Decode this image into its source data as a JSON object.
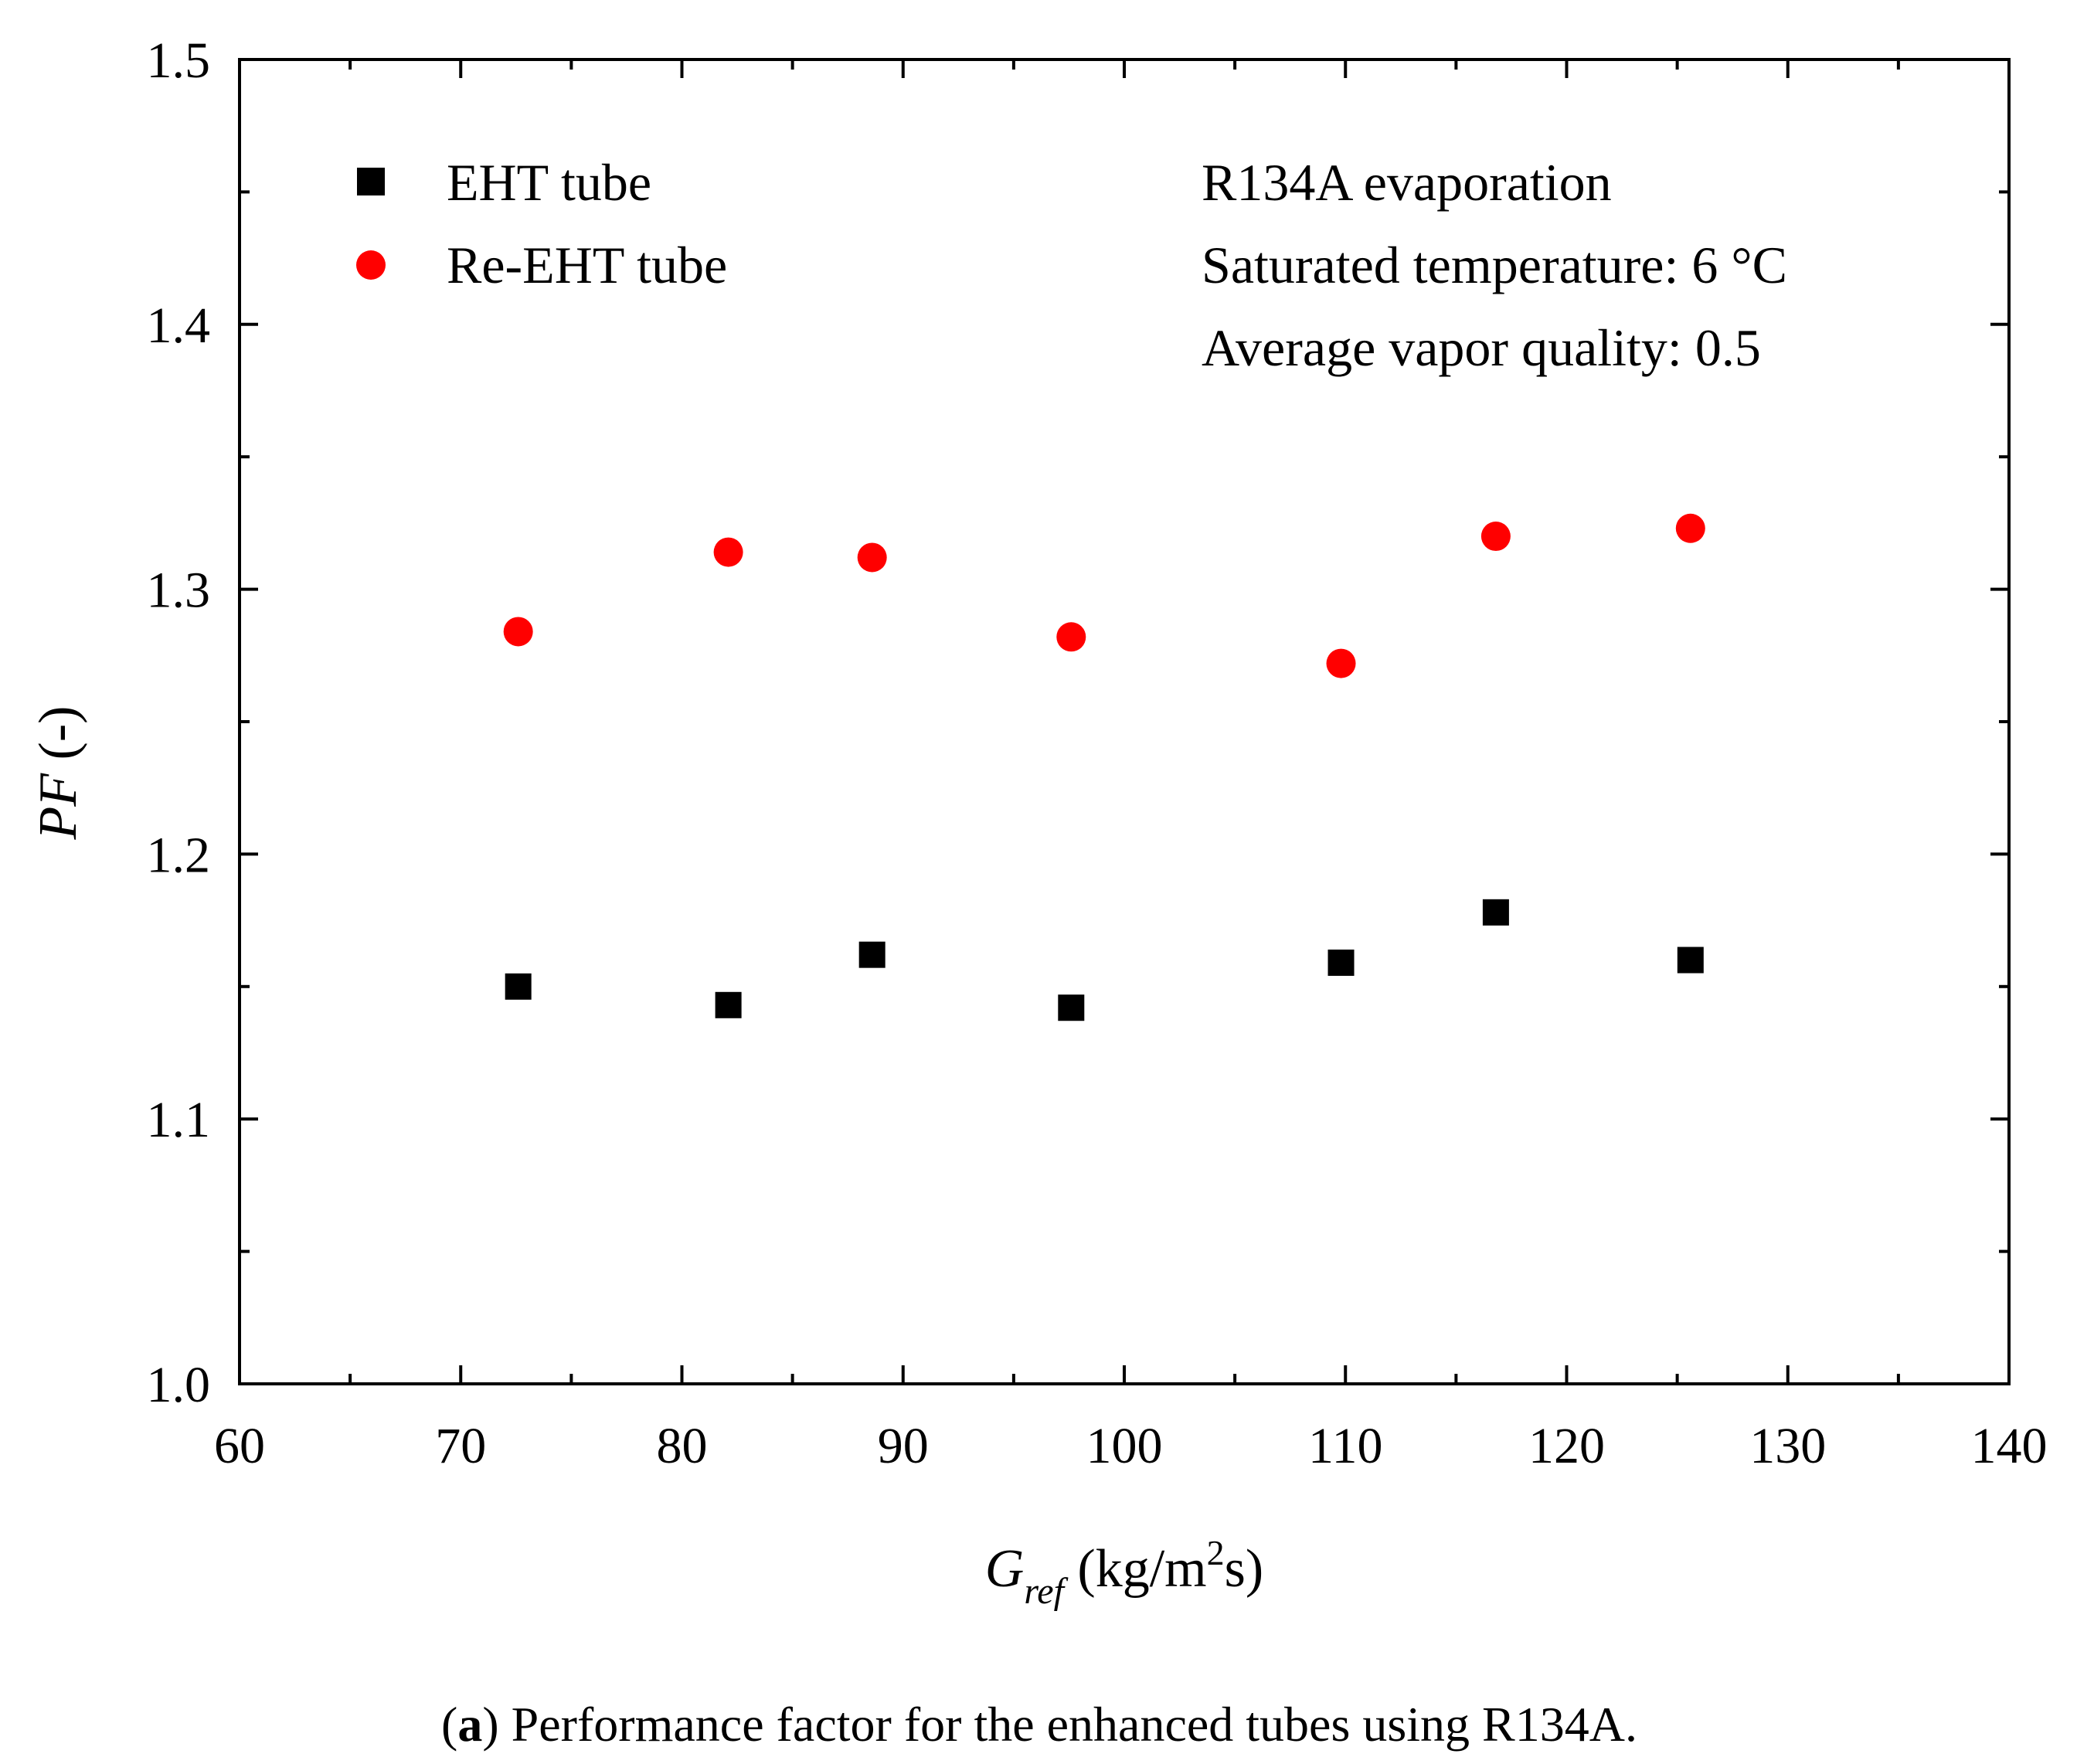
{
  "chart_data": {
    "type": "scatter",
    "xlabel": {
      "main": "G",
      "sub": "ref",
      "unit_pre": "(kg/m",
      "unit_sup": "2",
      "unit_post": "s)"
    },
    "ylabel": {
      "main": "PF",
      "unit": "(-)"
    },
    "xlim": [
      60,
      140
    ],
    "ylim": [
      1.0,
      1.5
    ],
    "x_ticks": [
      60,
      70,
      80,
      90,
      100,
      110,
      120,
      130,
      140
    ],
    "x_tick_labels": [
      "60",
      "70",
      "80",
      "90",
      "100",
      "110",
      "120",
      "130",
      "140"
    ],
    "y_ticks": [
      1.0,
      1.1,
      1.2,
      1.3,
      1.4,
      1.5
    ],
    "y_tick_labels": [
      "1.0",
      "1.1",
      "1.2",
      "1.3",
      "1.4",
      "1.5"
    ],
    "x_minor_step": 5,
    "y_minor_step": 0.05,
    "grid": false,
    "legend_position": "top-left",
    "series": [
      {
        "name": "EHT tube",
        "marker": "square",
        "color": "#000000",
        "x": [
          72.6,
          82.1,
          88.6,
          97.6,
          109.8,
          116.8,
          125.6
        ],
        "y": [
          1.15,
          1.143,
          1.162,
          1.142,
          1.159,
          1.178,
          1.16
        ]
      },
      {
        "name": "Re-EHT tube",
        "marker": "circle",
        "color": "#ff0000",
        "x": [
          72.6,
          82.1,
          88.6,
          97.6,
          109.8,
          116.8,
          125.6
        ],
        "y": [
          1.284,
          1.314,
          1.312,
          1.282,
          1.272,
          1.32,
          1.323
        ]
      }
    ],
    "annotations": [
      "R134A evaporation",
      "Saturated temperature: 6 °C",
      "Average vapor quality: 0.5"
    ]
  },
  "caption": {
    "label": "a",
    "text": " Performance factor for the enhanced tubes using R134A."
  }
}
